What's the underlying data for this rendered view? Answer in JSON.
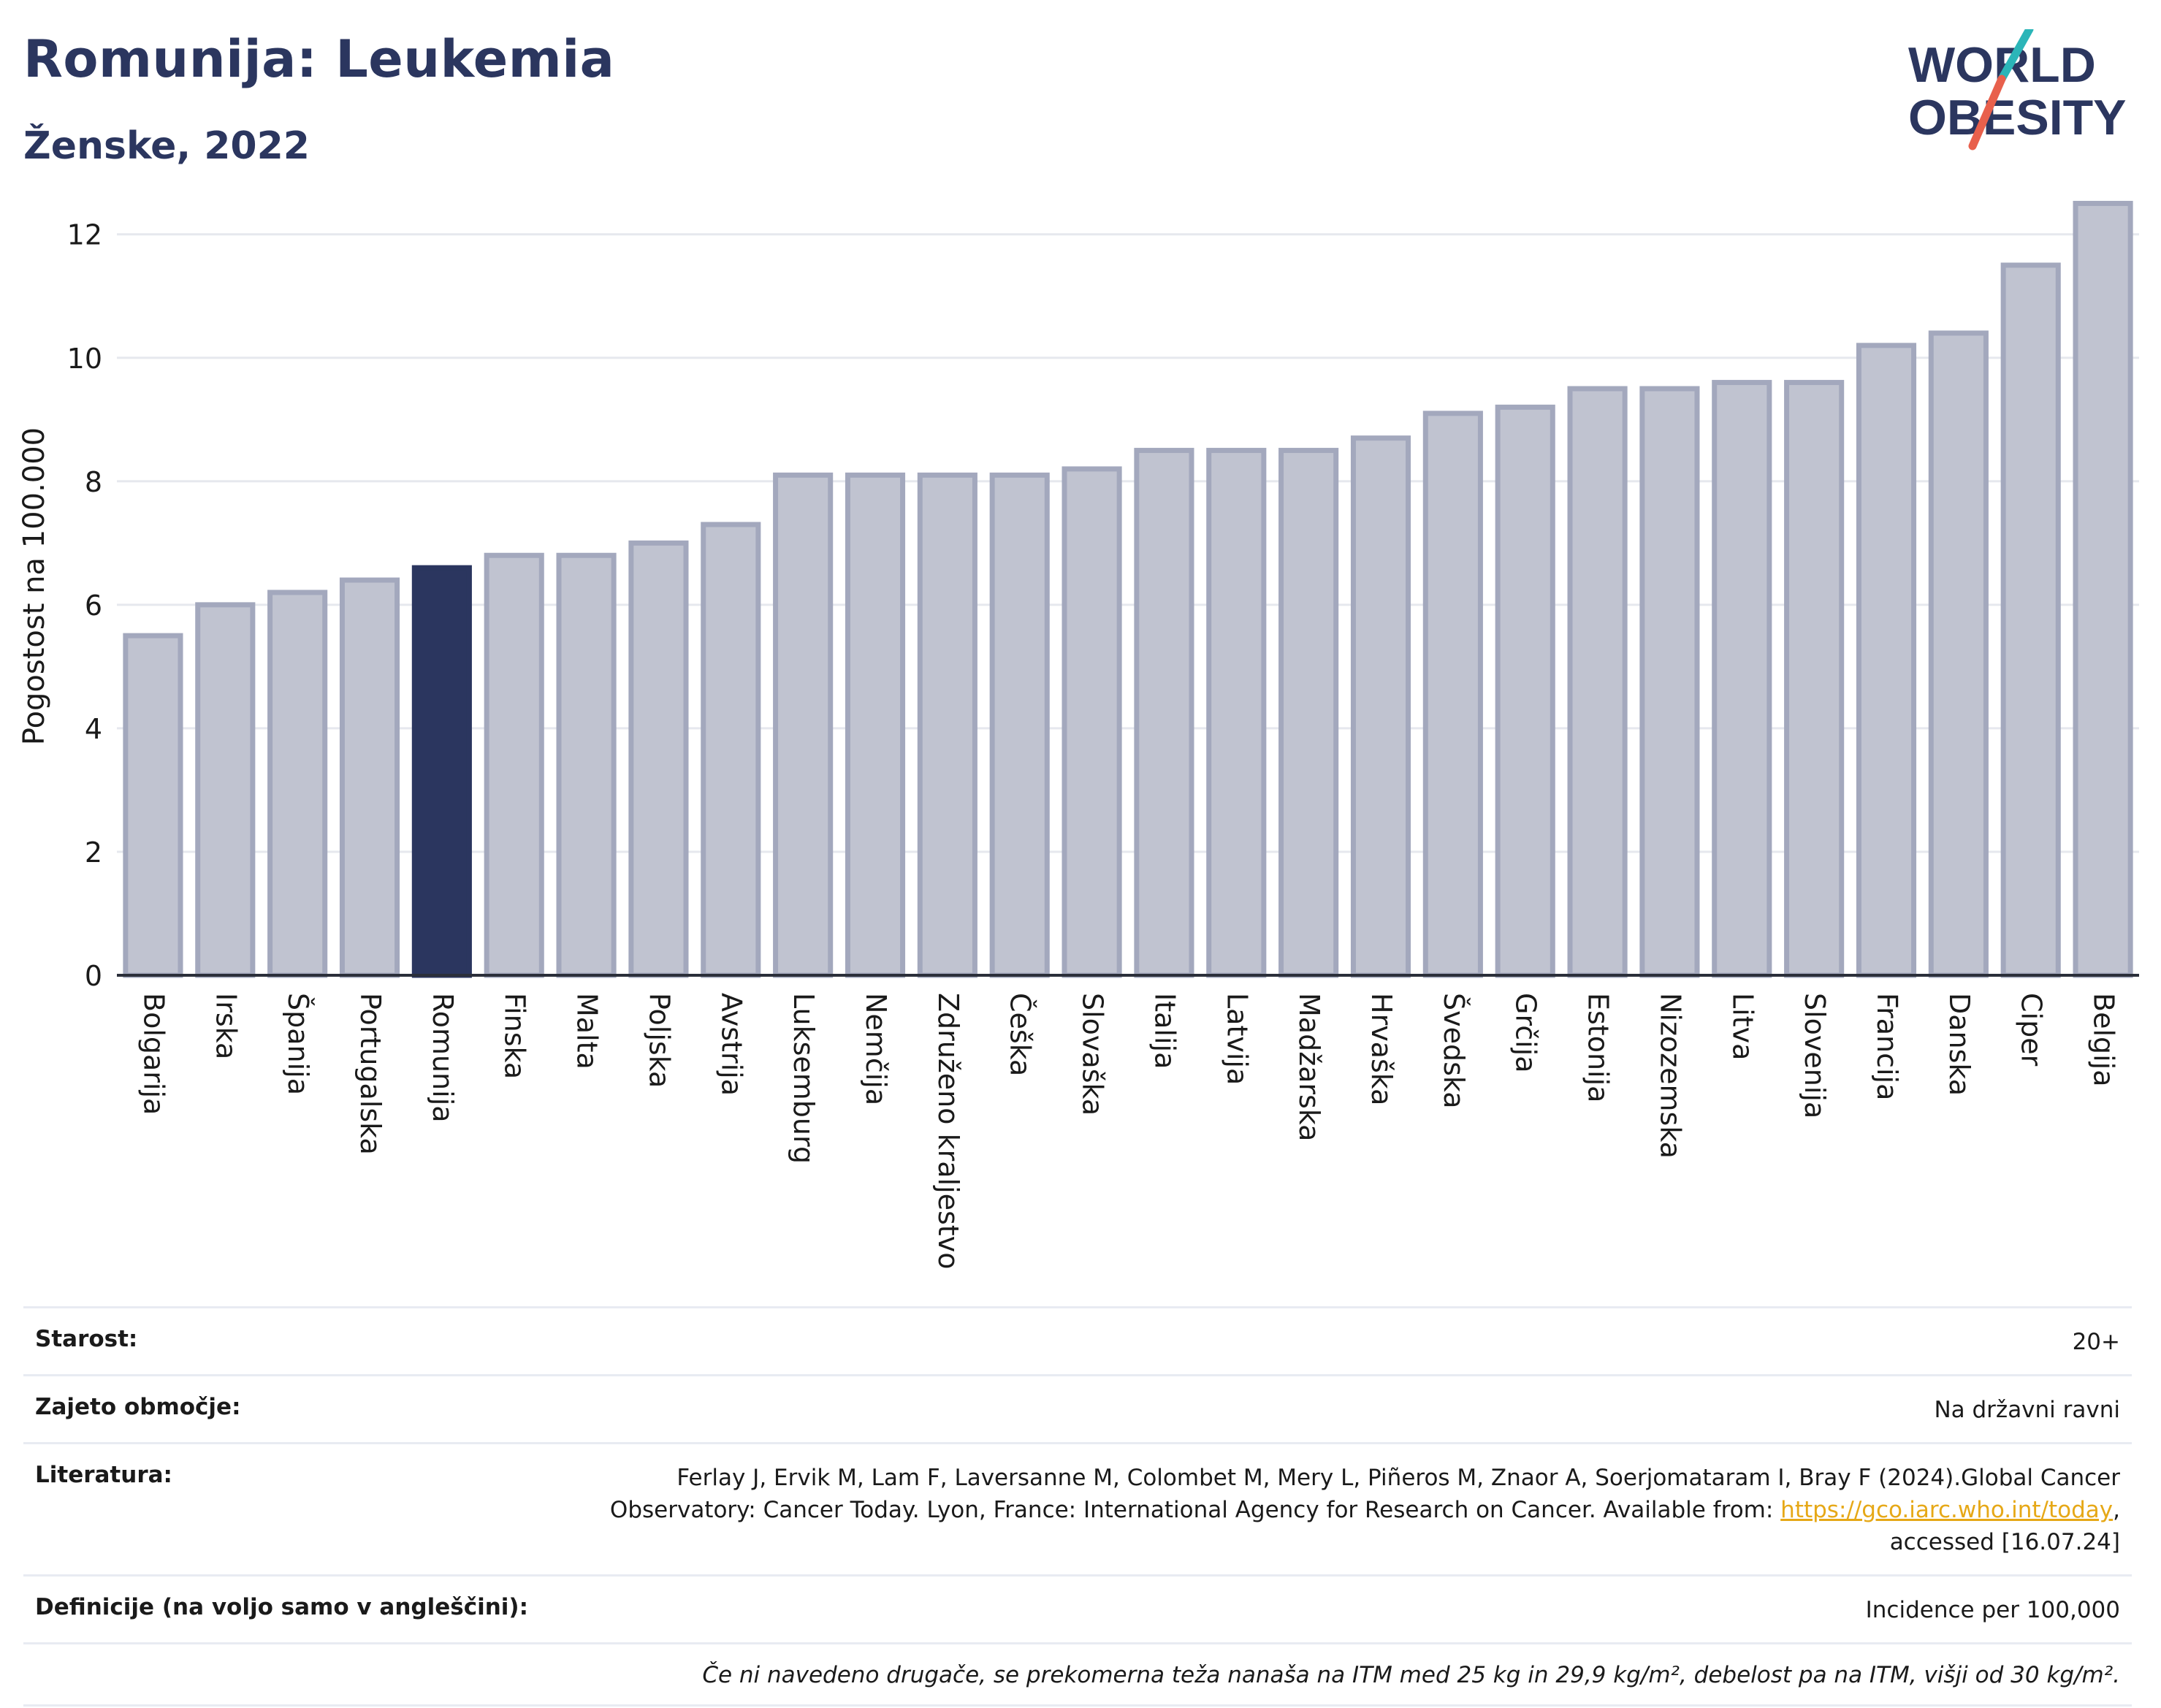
{
  "header": {
    "title": "Romunija: Leukemia",
    "subtitle": "Ženske, 2022"
  },
  "logo": {
    "line1": "WORLD",
    "line2": "OBESITY",
    "colors": {
      "text": "#2b365f",
      "slash_teal": "#2bb5b8",
      "slash_coral": "#e8604c"
    }
  },
  "chart_data": {
    "type": "bar",
    "title": "",
    "xlabel": "",
    "ylabel": "Pogostost na 100.000",
    "ylim": [
      0,
      12.6
    ],
    "yticks": [
      0,
      2,
      4,
      6,
      8,
      10,
      12
    ],
    "grid": true,
    "highlight": "Romunija",
    "colors": {
      "bar": "#c0c3d0",
      "bar_edge": "#a3a8bd",
      "highlight": "#2b365f",
      "grid": "#e6e8ee",
      "axis": "#2b2f3a"
    },
    "categories": [
      "Bolgarija",
      "Irska",
      "Španija",
      "Portugalska",
      "Romunija",
      "Finska",
      "Malta",
      "Poljska",
      "Avstrija",
      "Luksemburg",
      "Nemčija",
      "Združeno kraljestvo",
      "Češka",
      "Slovaška",
      "Italija",
      "Latvija",
      "Madžarska",
      "Hrvaška",
      "Švedska",
      "Grčija",
      "Estonija",
      "Nizozemska",
      "Litva",
      "Slovenija",
      "Francija",
      "Danska",
      "Ciper",
      "Belgija"
    ],
    "values": [
      5.5,
      6.0,
      6.2,
      6.4,
      6.6,
      6.8,
      6.8,
      7.0,
      7.3,
      8.1,
      8.1,
      8.1,
      8.1,
      8.2,
      8.5,
      8.5,
      8.5,
      8.7,
      9.1,
      9.2,
      9.5,
      9.5,
      9.6,
      9.6,
      10.2,
      10.4,
      11.5,
      12.5
    ]
  },
  "info": {
    "age_label": "Starost:",
    "age_value": "20+",
    "area_label": "Zajeto območje:",
    "area_value": "Na državni ravni",
    "ref_label": "Literatura:",
    "ref_line1": "Ferlay J, Ervik M, Lam F, Laversanne M, Colombet M, Mery L, Piñeros M, Znaor A, Soerjomataram I, Bray F (2024).Global Cancer",
    "ref_line2": "Observatory: Cancer Today. Lyon, France: International Agency for Research on Cancer. Available from: ",
    "ref_link": "https://gco.iarc.who.int/today",
    "ref_line2_end": ",",
    "ref_line3": "accessed [16.07.24]",
    "def_label": "Definicije (na voljo samo v angleščini):",
    "def_value": "Incidence per 100,000",
    "note": "Če ni navedeno drugače, se prekomerna teža nanaša na ITM med 25 kg in 29,9 kg/m², debelost pa na ITM, višji od 30 kg/m²."
  }
}
